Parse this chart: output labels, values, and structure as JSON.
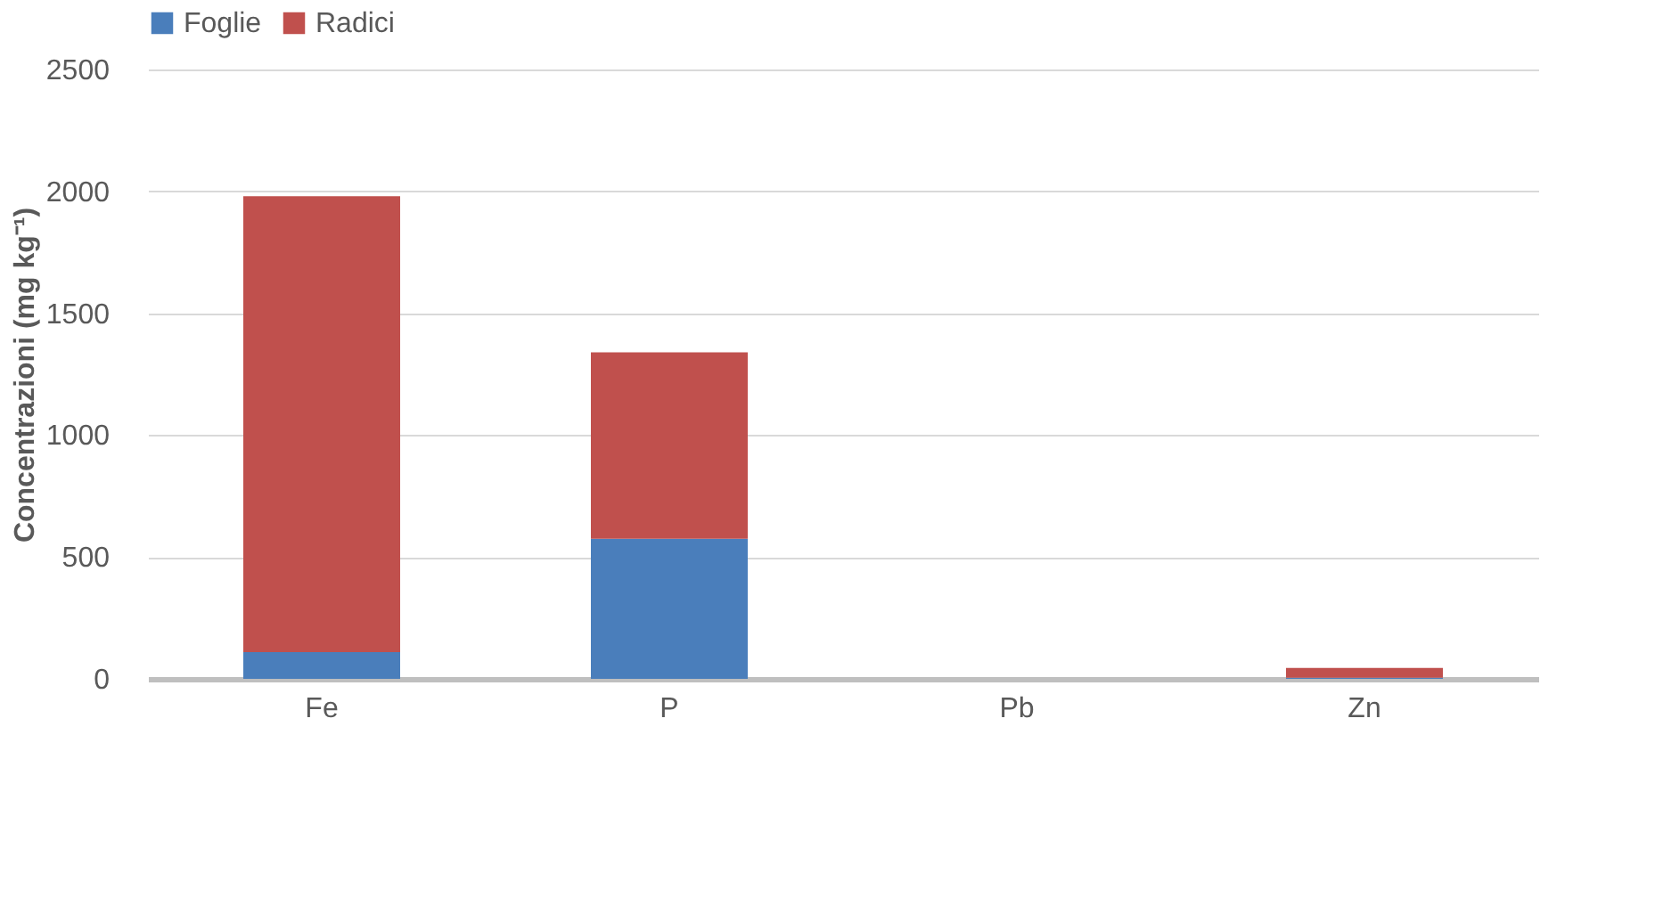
{
  "chart_data": {
    "type": "bar",
    "stacked": true,
    "ylabel": "Concentrazioni (mg kg⁻¹)",
    "categories": [
      "Fe",
      "P",
      "Pb",
      "Zn"
    ],
    "series": [
      {
        "name": "Foglie",
        "color": "#4a7ebb",
        "values": [
          110,
          575,
          0,
          5
        ]
      },
      {
        "name": "Radici",
        "color": "#c0504d",
        "values": [
          1870,
          765,
          0,
          40
        ]
      }
    ],
    "ylim": [
      0,
      2500
    ],
    "yticks": [
      0,
      500,
      1000,
      1500,
      2000,
      2500
    ],
    "grid": "y",
    "legend": "top"
  }
}
